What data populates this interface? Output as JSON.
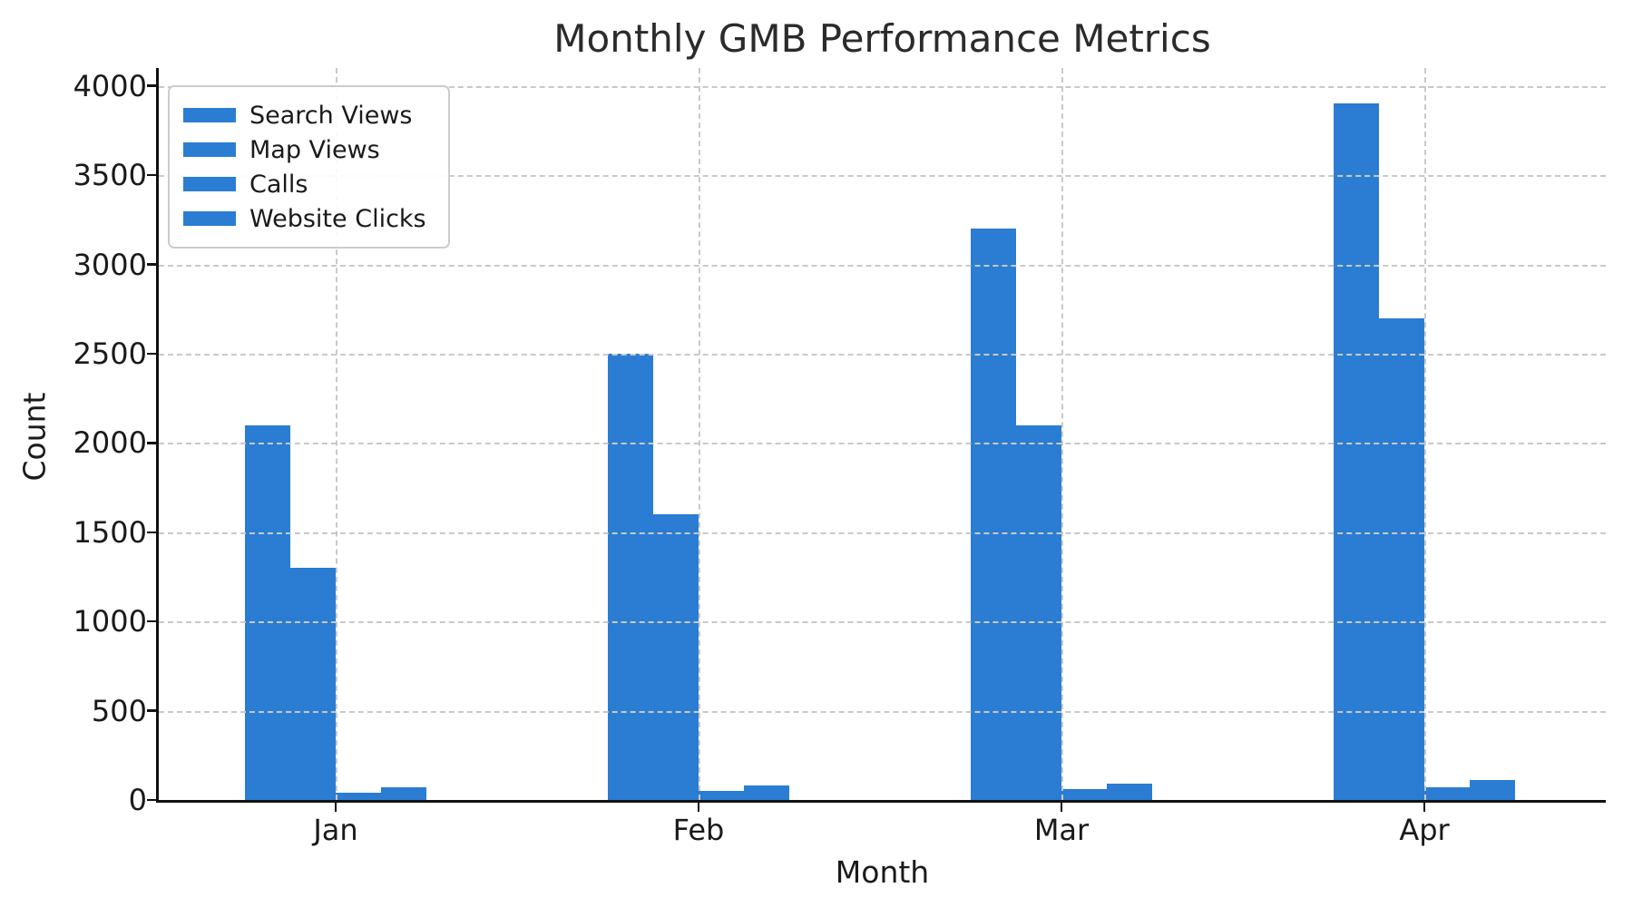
{
  "chart_data": {
    "type": "bar",
    "title": "Monthly GMB Performance Metrics",
    "xlabel": "Month",
    "ylabel": "Count",
    "categories": [
      "Jan",
      "Feb",
      "Mar",
      "Apr"
    ],
    "series": [
      {
        "name": "Search Views",
        "values": [
          2100,
          2500,
          3200,
          3900
        ]
      },
      {
        "name": "Map Views",
        "values": [
          1300,
          1600,
          2100,
          2700
        ]
      },
      {
        "name": "Calls",
        "values": [
          40,
          50,
          60,
          70
        ]
      },
      {
        "name": "Website Clicks",
        "values": [
          70,
          80,
          90,
          110
        ]
      }
    ],
    "yticks": [
      0,
      500,
      1000,
      1500,
      2000,
      2500,
      3000,
      3500,
      4000
    ],
    "ylim": [
      0,
      4100
    ],
    "grid": true,
    "grid_style": "dashed",
    "legend_position": "upper-left",
    "legend_entries": [
      "Search Views",
      "Map Views",
      "Calls",
      "Website Clicks"
    ]
  },
  "colors": {
    "bar": "#2A7DD2",
    "grid": "#c9c9c9",
    "text": "#1a1a1a",
    "title_text": "#2b2b2b",
    "spine": "#111111",
    "legend_border": "#cccccc",
    "background": "#ffffff"
  }
}
